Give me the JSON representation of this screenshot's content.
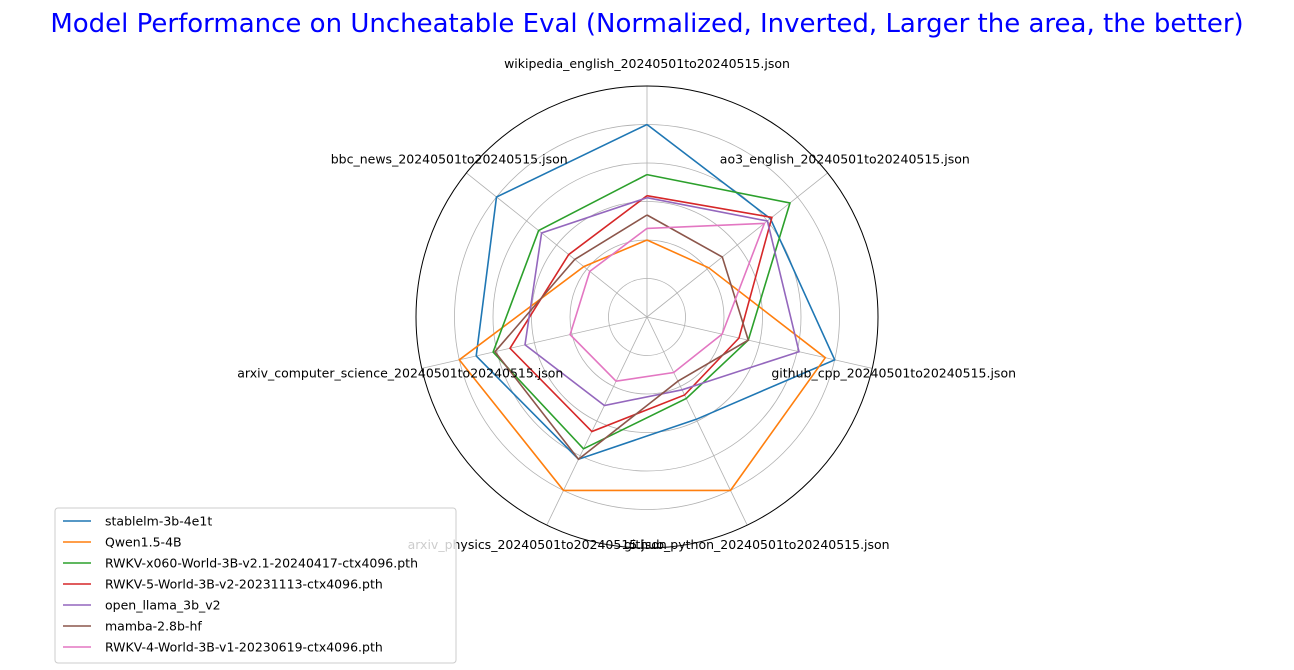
{
  "chart_data": {
    "type": "radar",
    "title": "Model Performance on Uncheatable Eval (Normalized, Inverted, Larger the area, the better)",
    "title_color": "#0000ff",
    "axes": [
      "wikipedia_english_20240501to20240515.json",
      "ao3_english_20240501to20240515.json",
      "github_cpp_20240501to20240515.json",
      "github_python_20240501to20240515.json",
      "arxiv_physics_20240501to20240515.json",
      "arxiv_computer_science_20240501to20240515.json",
      "bbc_news_20240501to20240515.json"
    ],
    "rmax": 1.2,
    "grid_rings": [
      0.2,
      0.4,
      0.6,
      0.8,
      1.0
    ],
    "grid": true,
    "legend_position": "lower-left",
    "series": [
      {
        "name": "stablelm-3b-4e1t",
        "color": "#1f77b4",
        "values": [
          1.0,
          0.82,
          1.0,
          0.59,
          0.82,
          0.91,
          1.0
        ]
      },
      {
        "name": "Qwen1.5-4B",
        "color": "#ff7f0e",
        "values": [
          0.4,
          0.41,
          0.95,
          1.0,
          1.0,
          1.0,
          0.42
        ]
      },
      {
        "name": "RWKV-x060-World-3B-v2.1-20240417-ctx4096.pth",
        "color": "#2ca02c",
        "values": [
          0.74,
          0.95,
          0.54,
          0.47,
          0.76,
          0.82,
          0.72
        ]
      },
      {
        "name": "RWKV-5-World-3B-v2-20231113-ctx4096.pth",
        "color": "#d62728",
        "values": [
          0.63,
          0.83,
          0.49,
          0.45,
          0.66,
          0.73,
          0.52
        ]
      },
      {
        "name": "open_llama_3b_v2",
        "color": "#9467bd",
        "values": [
          0.62,
          0.8,
          0.81,
          0.42,
          0.51,
          0.65,
          0.7
        ]
      },
      {
        "name": "mamba-2.8b-hf",
        "color": "#8c564b",
        "values": [
          0.53,
          0.5,
          0.54,
          0.37,
          0.82,
          0.81,
          0.48
        ]
      },
      {
        "name": "RWKV-4-World-3B-v1-20230619-ctx4096.pth",
        "color": "#e377c2",
        "values": [
          0.46,
          0.78,
          0.4,
          0.32,
          0.37,
          0.41,
          0.38
        ]
      }
    ]
  }
}
